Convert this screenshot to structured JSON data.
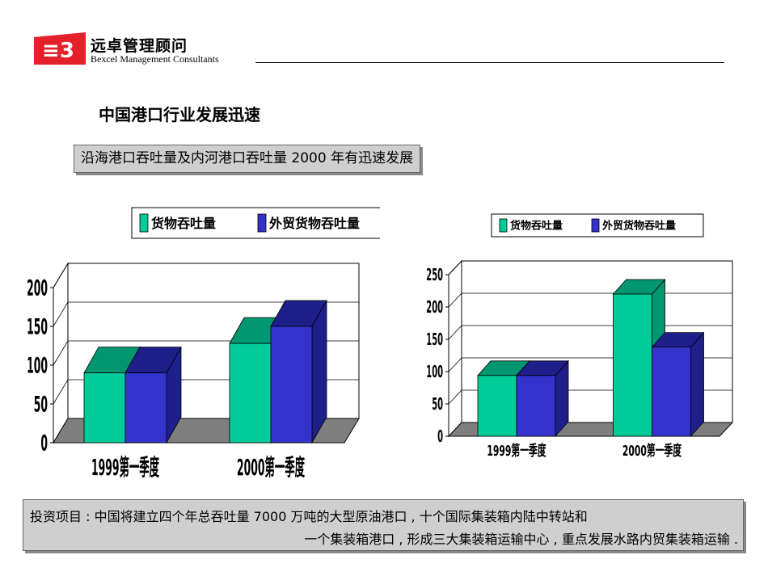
{
  "brand": {
    "name_cn": "远卓管理顾问",
    "name_en": "Bexcel Management Consultants"
  },
  "page_title": "中国港口行业发展迅速",
  "subtitle": "沿海港口吞吐量及内河港口吞吐量 2000 年有迅速发展",
  "footer": {
    "line1": "投资项目 : 中国将建立四个年总吞吐量 7000 万吨的大型原油港口 , 十个国际集装箱内陆中转站和",
    "line2": "一个集装箱港口 , 形成三大集装箱运输中心 , 重点发展水路内贸集装箱运输 ."
  },
  "colors": {
    "series1": "#00cc99",
    "series1_dark": "#009670",
    "series2": "#3333cc",
    "series2_dark": "#1f1f8c",
    "floor": "#7f7f7f",
    "brand_red": "#e4202a"
  },
  "chart_data": [
    {
      "type": "bar",
      "categories": [
        "1999第一季度",
        "2000第一季度"
      ],
      "series": [
        {
          "name": "货物吞吐量",
          "values": [
            90,
            128
          ]
        },
        {
          "name": "外贸货物吞吐量",
          "values": [
            90,
            150
          ]
        }
      ],
      "yticks": [
        "0",
        "50",
        "100",
        "150",
        "200"
      ],
      "ylim": [
        0,
        200
      ],
      "grid": true,
      "legend": "top"
    },
    {
      "type": "bar",
      "categories": [
        "1999第一季度",
        "2000第一季度"
      ],
      "series": [
        {
          "name": "货物吞吐量",
          "values": [
            94,
            220
          ]
        },
        {
          "name": "外贸货物吞吐量",
          "values": [
            94,
            138
          ]
        }
      ],
      "yticks": [
        "0",
        "50",
        "100",
        "150",
        "200",
        "250"
      ],
      "ylim": [
        0,
        250
      ],
      "grid": true,
      "legend": "top"
    }
  ]
}
